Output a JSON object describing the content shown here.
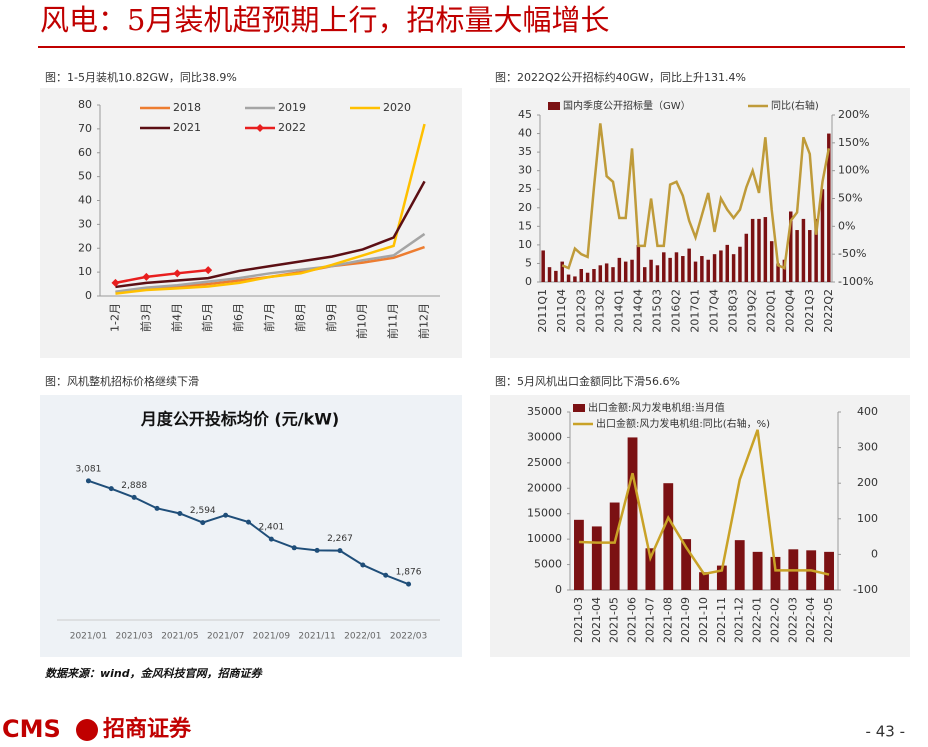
{
  "header": {
    "title": "风电：5月装机超预期上行，招标量大幅增长"
  },
  "chart_data": [
    {
      "type": "line",
      "title": "图：1-5月装机10.82GW，同比38.9%",
      "categories": [
        "1-2月",
        "前3月",
        "前4月",
        "前5月",
        "前6月",
        "前7月",
        "前8月",
        "前9月",
        "前10月",
        "前11月",
        "前12月"
      ],
      "ylim": [
        0,
        80
      ],
      "yticks": [
        0,
        10,
        20,
        30,
        40,
        50,
        60,
        70,
        80
      ],
      "series": [
        {
          "name": "2018",
          "color": "#ED7D31",
          "values": [
            1.5,
            3,
            4,
            5,
            6.5,
            8,
            10,
            12.5,
            14,
            16,
            20.5
          ]
        },
        {
          "name": "2019",
          "color": "#A5A5A5",
          "values": [
            1.8,
            3.5,
            4.5,
            6,
            7.5,
            9.5,
            11,
            12.5,
            15,
            17,
            26
          ]
        },
        {
          "name": "2020",
          "color": "#FFC000",
          "values": [
            1,
            2.5,
            3.2,
            4,
            5.5,
            8,
            9.5,
            13,
            17,
            21,
            72
          ]
        },
        {
          "name": "2021",
          "color": "#5C0F14",
          "values": [
            3.8,
            5.5,
            6.5,
            7.5,
            10.5,
            12.5,
            14.5,
            16.5,
            19.5,
            24.5,
            48
          ]
        },
        {
          "name": "2022",
          "color": "#E81E1E",
          "marker": "diamond",
          "values": [
            5.5,
            8,
            9.5,
            10.82,
            null,
            null,
            null,
            null,
            null,
            null,
            null
          ]
        }
      ]
    },
    {
      "type": "bar",
      "title": "图：2022Q2公开招标约40GW，同比上升131.4%",
      "categories": [
        "2011Q1",
        null,
        null,
        "2011Q4",
        null,
        null,
        "2012Q3",
        null,
        null,
        "2013Q2",
        null,
        null,
        "2014Q1",
        null,
        null,
        "2014Q4",
        null,
        null,
        "2015Q3",
        null,
        null,
        "2016Q2",
        null,
        null,
        "2017Q1",
        null,
        null,
        "2017Q4",
        null,
        null,
        "2018Q3",
        null,
        null,
        "2019Q2",
        null,
        null,
        "2020Q1",
        null,
        null,
        "2020Q4",
        null,
        null,
        "2021Q3",
        null,
        null,
        "2022Q2"
      ],
      "ylim": [
        0,
        45
      ],
      "yticks": [
        0,
        5,
        10,
        15,
        20,
        25,
        30,
        35,
        40,
        45
      ],
      "y2lim": [
        -100,
        200
      ],
      "y2ticks": [
        {
          "value": -100,
          "label": "-100%"
        },
        {
          "value": -50,
          "label": "-50%"
        },
        {
          "value": 0,
          "label": "0%"
        },
        {
          "value": 50,
          "label": "50%"
        },
        {
          "value": 100,
          "label": "100%"
        },
        {
          "value": 150,
          "label": "150%"
        },
        {
          "value": 200,
          "label": "200%"
        }
      ],
      "series": [
        {
          "name": "国内季度公开招标量（GW）",
          "color": "#7B1113",
          "type": "bar",
          "values": [
            8.5,
            4,
            3,
            5.5,
            2,
            1.5,
            3.5,
            2.5,
            3.5,
            4.5,
            5,
            4,
            6.5,
            5.5,
            6,
            10,
            4,
            6,
            4.5,
            8,
            6.5,
            8,
            7,
            9,
            5.5,
            7,
            6,
            7.5,
            8.5,
            10,
            7.5,
            9.5,
            13,
            17,
            17,
            17.5,
            11,
            5,
            6,
            19,
            14,
            17,
            14,
            17,
            25,
            40
          ]
        },
        {
          "name": "同比(右轴)",
          "color": "#BF9B3A",
          "type": "line",
          "axis": "y2",
          "values": [
            null,
            null,
            null,
            -70,
            -75,
            -40,
            -50,
            -55,
            70,
            185,
            90,
            80,
            15,
            15,
            140,
            -35,
            -35,
            50,
            -35,
            -35,
            75,
            80,
            55,
            10,
            -20,
            20,
            60,
            -10,
            50,
            30,
            15,
            30,
            70,
            100,
            60,
            160,
            30,
            -70,
            -75,
            10,
            25,
            160,
            130,
            -15,
            80,
            140
          ]
        }
      ]
    },
    {
      "type": "line",
      "title": "图：风机整机招标价格继续下滑",
      "subtitle": "月度公开投标均价 (元/kW)",
      "categories": [
        "2021/01",
        null,
        "2021/03",
        null,
        "2021/05",
        null,
        "2021/07",
        null,
        "2021/09",
        null,
        "2021/11",
        null,
        "2022/01",
        null,
        "2022/03"
      ],
      "series": [
        {
          "name": null,
          "color": "#1F4E79",
          "values": [
            3081,
            2990,
            2888,
            2760,
            2700,
            2594,
            2680,
            2600,
            2401,
            2300,
            2270,
            2267,
            2100,
            1980,
            1876
          ],
          "value_labels": [
            "3,081",
            null,
            "2,888",
            null,
            null,
            "2,594",
            null,
            null,
            "2,401",
            null,
            null,
            "2,267",
            null,
            null,
            "1,876"
          ]
        }
      ]
    },
    {
      "type": "bar",
      "title": "图：5月风机出口金额同比下滑56.6%",
      "categories": [
        "2021-03",
        "2021-04",
        "2021-05",
        "2021-06",
        "2021-07",
        "2021-08",
        "2021-09",
        "2021-10",
        "2021-11",
        "2021-12",
        "2022-01",
        "2022-02",
        "2022-03",
        "2022-04",
        "2022-05"
      ],
      "ylim": [
        0,
        35000
      ],
      "yticks": [
        0,
        5000,
        10000,
        15000,
        20000,
        25000,
        30000,
        35000
      ],
      "y2lim": [
        -100,
        400
      ],
      "y2ticks": [
        -100,
        0,
        100,
        200,
        300,
        400
      ],
      "series": [
        {
          "name": "出口金额:风力发电机组:当月值",
          "color": "#7B1113",
          "type": "bar",
          "values": [
            13800,
            12500,
            17200,
            30000,
            8200,
            21000,
            10000,
            3500,
            4800,
            9800,
            7500,
            6500,
            8000,
            7800,
            7500
          ]
        },
        {
          "name": "出口金额:风力发电机组:同比(右轴，%)",
          "color": "#C9A227",
          "type": "line",
          "axis": "y2",
          "values": [
            35,
            33,
            33,
            228,
            -10,
            103,
            20,
            -55,
            -45,
            210,
            350,
            -45,
            -45,
            -45,
            -56.6
          ]
        }
      ]
    }
  ],
  "source": "数据来源：wind，金风科技官网，招商证券",
  "footer": {
    "logo": "CMS",
    "brand": "招商证券",
    "page": "- 43 -"
  }
}
